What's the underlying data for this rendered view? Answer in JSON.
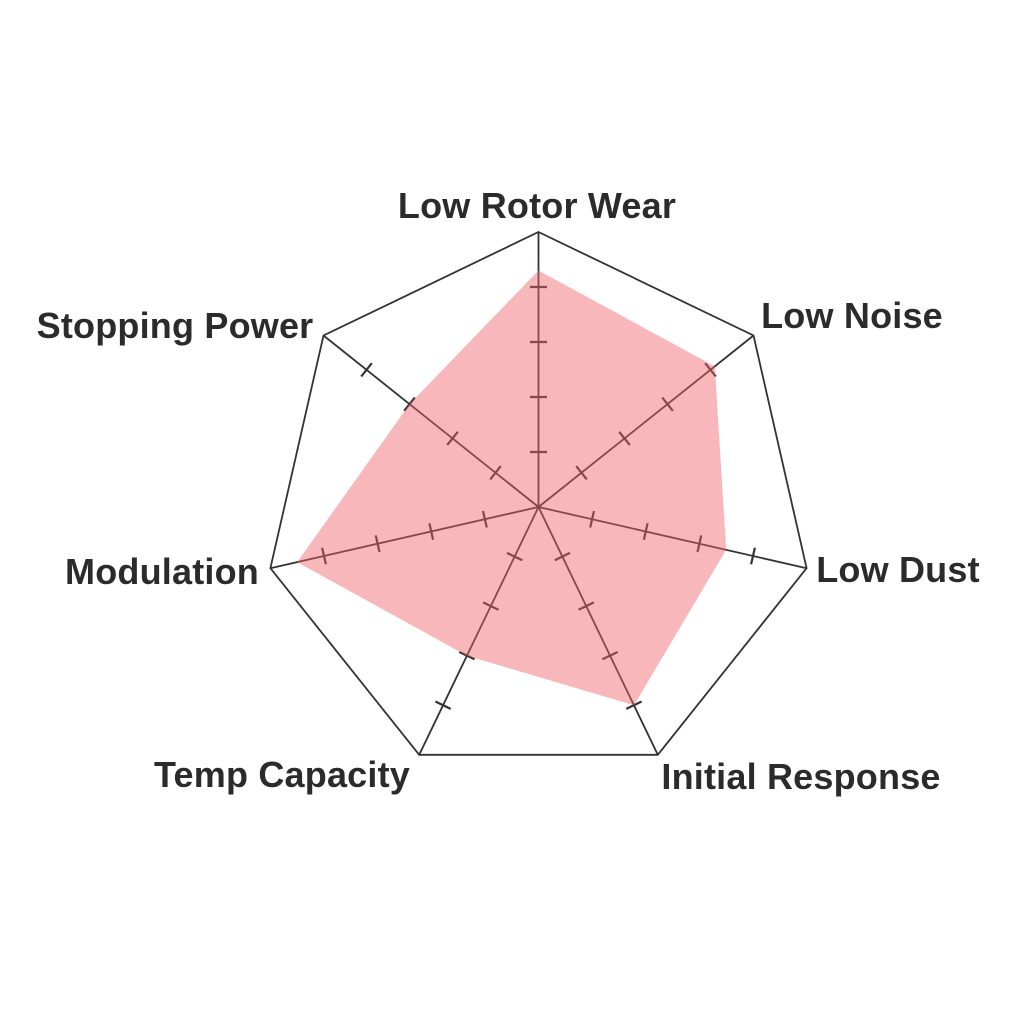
{
  "chart_data": {
    "type": "radar",
    "title": "",
    "categories": [
      "Low Rotor Wear",
      "Low Noise",
      "Low Dust",
      "Initial Response",
      "Temp Capacity",
      "Modulation",
      "Stopping Power"
    ],
    "axes": [
      {
        "label": "Low Rotor Wear",
        "value": 4.3
      },
      {
        "label": "Low Noise",
        "value": 4.1
      },
      {
        "label": "Low Dust",
        "value": 3.5
      },
      {
        "label": "Initial Response",
        "value": 4.0
      },
      {
        "label": "Temp Capacity",
        "value": 3.0
      },
      {
        "label": "Modulation",
        "value": 4.5
      },
      {
        "label": "Stopping Power",
        "value": 3.0
      }
    ],
    "scale": {
      "min": 0,
      "max": 5,
      "tick_step": 1,
      "ticks_marked": [
        1,
        2,
        3,
        4
      ]
    },
    "layout": {
      "start_angle_deg": -90,
      "direction": "clockwise",
      "grid_rings": "outer-outline-only",
      "legend": "none"
    },
    "colors": {
      "fill": "#F05F67",
      "fill_opacity": "0.45",
      "axis_line": "#333333",
      "label_text": "#2B2B2B",
      "background": "#FFFFFF"
    }
  }
}
